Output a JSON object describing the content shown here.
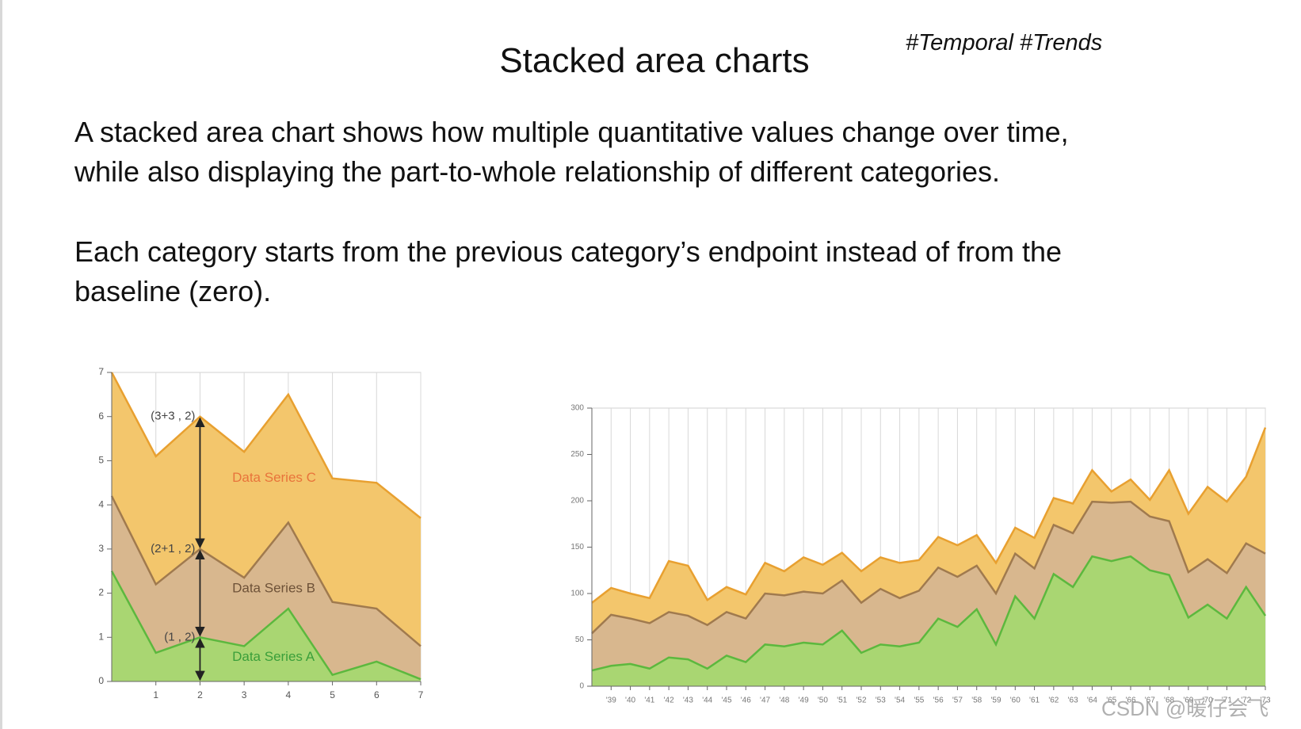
{
  "title": "Stacked area charts",
  "tags": "#Temporal #Trends",
  "paragraphs": [
    [
      "A stacked area chart  shows how multiple quantitative values change over time,",
      "while also displaying the part-to-whole relationship of different categories."
    ],
    [
      "Each category starts from the previous category’s endpoint instead of from the",
      "baseline (zero)."
    ]
  ],
  "watermark": "CSDN @暖仔会飞",
  "chart_data": [
    {
      "type": "area",
      "stacked": true,
      "x": [
        0,
        1,
        2,
        3,
        4,
        5,
        6,
        7
      ],
      "xlim": [
        0,
        7
      ],
      "xticks": [
        1,
        2,
        3,
        4,
        5,
        6,
        7
      ],
      "ylim": [
        0,
        7
      ],
      "yticks": [
        0,
        1,
        2,
        3,
        4,
        5,
        6,
        7
      ],
      "grid": "x",
      "series": [
        {
          "name": "Data Series A",
          "color": "#5cb83e",
          "fill": "#a9d672",
          "label_color": "#3a9f3a",
          "values": [
            2.5,
            0.65,
            1,
            0.8,
            1.65,
            0.15,
            0.45,
            0.05
          ]
        },
        {
          "name": "Data Series B",
          "color": "#a07a4e",
          "fill": "#d8b78e",
          "label_color": "#6e5238",
          "values": [
            1.7,
            1.55,
            2,
            1.55,
            1.95,
            1.65,
            1.2,
            0.75
          ]
        },
        {
          "name": "Data Series C",
          "color": "#e8a030",
          "fill": "#f3c66c",
          "label_color": "#e8743b",
          "values": [
            2.8,
            2.9,
            3,
            2.85,
            2.9,
            2.8,
            2.85,
            2.9
          ]
        }
      ],
      "annotations": [
        "(1 , 2)",
        "(2+1 , 2)",
        "(3+3 , 2)"
      ]
    },
    {
      "type": "area",
      "stacked": true,
      "categories": [
        null,
        "'39",
        "'40",
        "'41",
        "'42",
        "'43",
        "'44",
        "'45",
        "'46",
        "'47",
        "'48",
        "'49",
        "'50",
        "'51",
        "'52",
        "'53",
        "'54",
        "'55",
        "'56",
        "'57",
        "'58",
        "'59",
        "'60",
        "'61",
        "'62",
        "'63",
        "'64",
        "'65",
        "'66",
        "'67",
        "'68",
        "'69",
        "'70",
        "'71",
        "'72",
        "'73"
      ],
      "ylim": [
        0,
        300
      ],
      "yticks": [
        0,
        50,
        100,
        150,
        200,
        250,
        300
      ],
      "grid": "x",
      "series": [
        {
          "color": "#5cb83e",
          "fill": "#a9d672",
          "values": [
            17,
            22,
            24,
            19,
            31,
            29,
            19,
            33,
            26,
            45,
            43,
            47,
            45,
            60,
            36,
            45,
            43,
            47,
            73,
            64,
            83,
            45,
            97,
            73,
            121,
            107,
            140,
            135,
            140,
            125,
            120,
            74,
            88,
            73,
            107,
            76
          ]
        },
        {
          "color": "#a07a4e",
          "fill": "#d8b78e",
          "values": [
            40,
            55,
            49,
            49,
            49,
            47,
            47,
            47,
            47,
            55,
            55,
            55,
            55,
            54,
            54,
            60,
            52,
            56,
            55,
            54,
            47,
            55,
            46,
            54,
            53,
            58,
            59,
            63,
            59,
            58,
            58,
            49,
            49,
            49,
            47,
            67
          ]
        },
        {
          "color": "#e8a030",
          "fill": "#f3c66c",
          "values": [
            33,
            29,
            27,
            27,
            55,
            54,
            27,
            27,
            26,
            33,
            26,
            37,
            31,
            30,
            34,
            34,
            38,
            33,
            33,
            34,
            33,
            33,
            28,
            33,
            29,
            32,
            34,
            12,
            24,
            18,
            55,
            63,
            78,
            77,
            72,
            136
          ]
        }
      ]
    }
  ]
}
